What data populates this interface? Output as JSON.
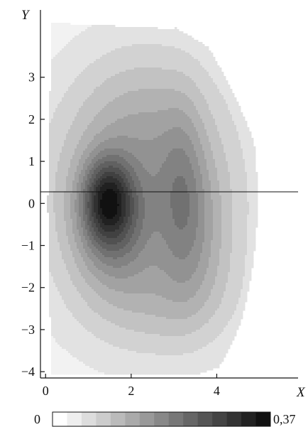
{
  "chart_data": {
    "type": "heatmap",
    "title": "",
    "xlabel": "X",
    "ylabel": "Y",
    "xlim": [
      -0.12,
      5.9
    ],
    "ylim": [
      -4.15,
      4.6
    ],
    "xticks": [
      0,
      2,
      4
    ],
    "yticks": [
      3,
      2,
      1,
      0,
      -1,
      -2,
      -3,
      -4
    ],
    "tick_labels_x": [
      "0",
      "2",
      "4"
    ],
    "tick_labels_y": [
      "3",
      "2",
      "1",
      "0",
      "−1",
      "−2",
      "−3",
      "−4"
    ],
    "zero_line": true,
    "grid": false,
    "levels": 15,
    "colorbar": {
      "min_label": "0",
      "max_label": "0,37",
      "min": 0,
      "max": 0.37
    },
    "colors": {
      "low": "#f2f2f2",
      "high": "#111111"
    }
  }
}
